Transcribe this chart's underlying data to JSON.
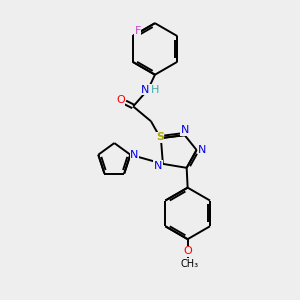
{
  "background_color": "#eeeeee",
  "bond_color": "#000000",
  "atom_colors": {
    "F": "#cc44cc",
    "N": "#0000ee",
    "O": "#ff0000",
    "S": "#aaaa00",
    "H": "#44aaaa",
    "C": "#000000"
  },
  "figsize": [
    3.0,
    3.0
  ],
  "dpi": 100,
  "lw": 1.4,
  "fontsize": 7.5
}
